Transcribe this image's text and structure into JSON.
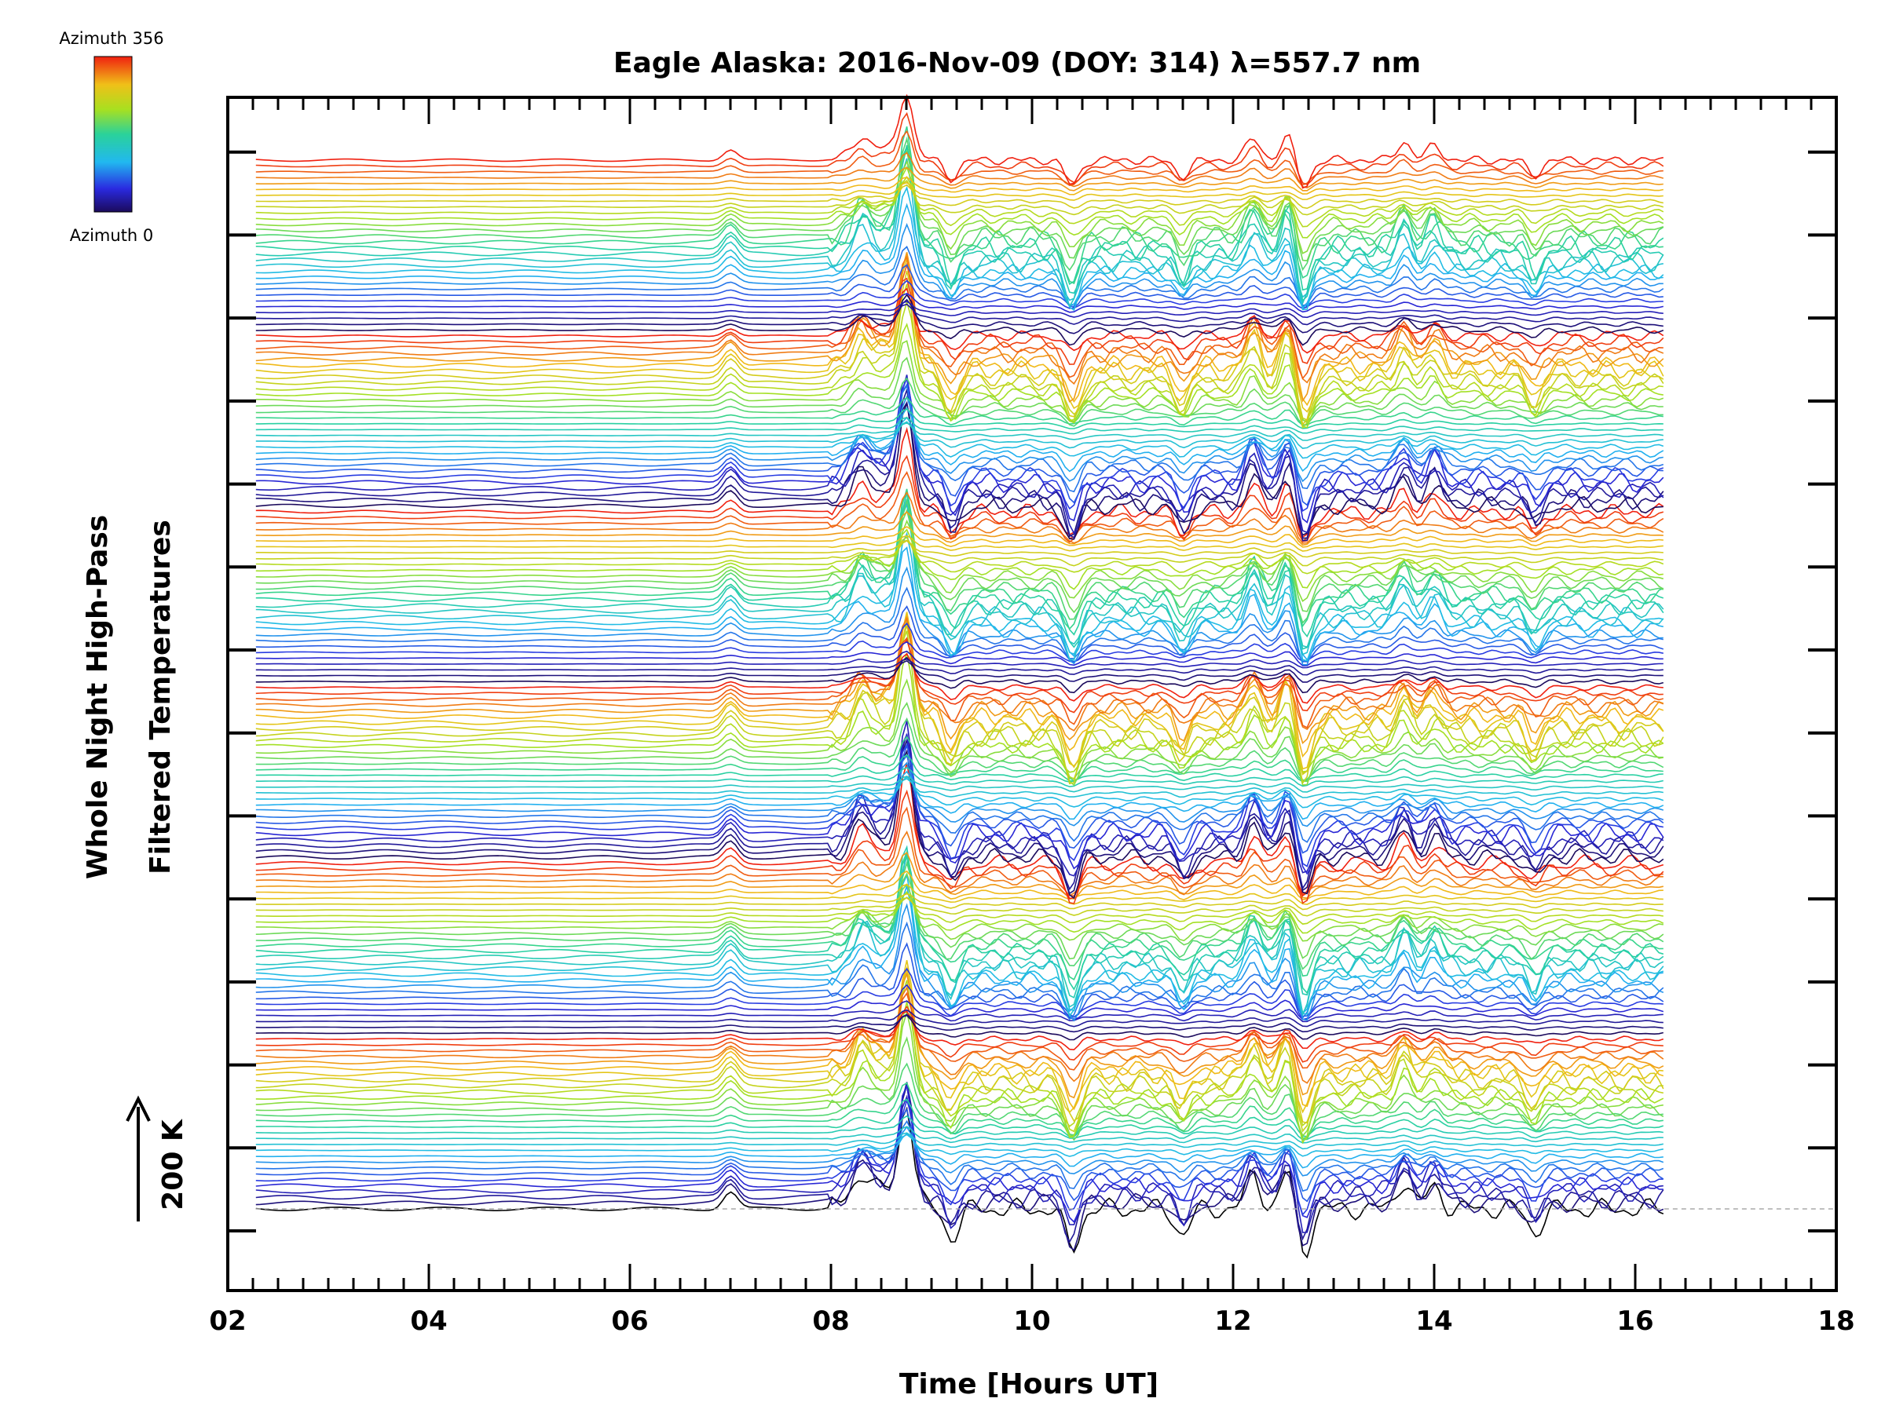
{
  "chart_data": {
    "type": "line",
    "title": "Eagle Alaska: 2016-Nov-09 (DOY: 314) λ=557.7 nm",
    "xlabel": "Time [Hours UT]",
    "ylabel_lines": [
      "Whole Night High-Pass",
      "Filtered Temperatures"
    ],
    "xlim": [
      2,
      18
    ],
    "x_ticks": [
      "02",
      "04",
      "06",
      "08",
      "10",
      "12",
      "14",
      "16",
      "18"
    ],
    "data_time_range": [
      2.28,
      16.28
    ],
    "grid": false,
    "scale_bar": {
      "label": "200 K",
      "value_K": 200
    },
    "colorbar": {
      "top_label": "Azimuth 356",
      "bottom_label": "Azimuth 0",
      "azimuth_range": [
        0,
        356
      ],
      "colormap": "rainbow"
    },
    "series_count": 180,
    "description_keys": "stacked traces, one per azimuth sample, offset vertically",
    "profile_features_hours": [
      {
        "t": 7.0,
        "amp_K": 30
      },
      {
        "t": 8.3,
        "amp_K": 40
      },
      {
        "t": 8.75,
        "amp_K": 170
      },
      {
        "t": 9.2,
        "amp_K": -50
      },
      {
        "t": 10.4,
        "amp_K": -70
      },
      {
        "t": 11.5,
        "amp_K": -45
      },
      {
        "t": 12.2,
        "amp_K": 60
      },
      {
        "t": 12.55,
        "amp_K": 70
      },
      {
        "t": 12.7,
        "amp_K": -80
      },
      {
        "t": 13.7,
        "amp_K": 50
      },
      {
        "t": 14.0,
        "amp_K": 40
      },
      {
        "t": 15.0,
        "amp_K": -40
      }
    ]
  }
}
